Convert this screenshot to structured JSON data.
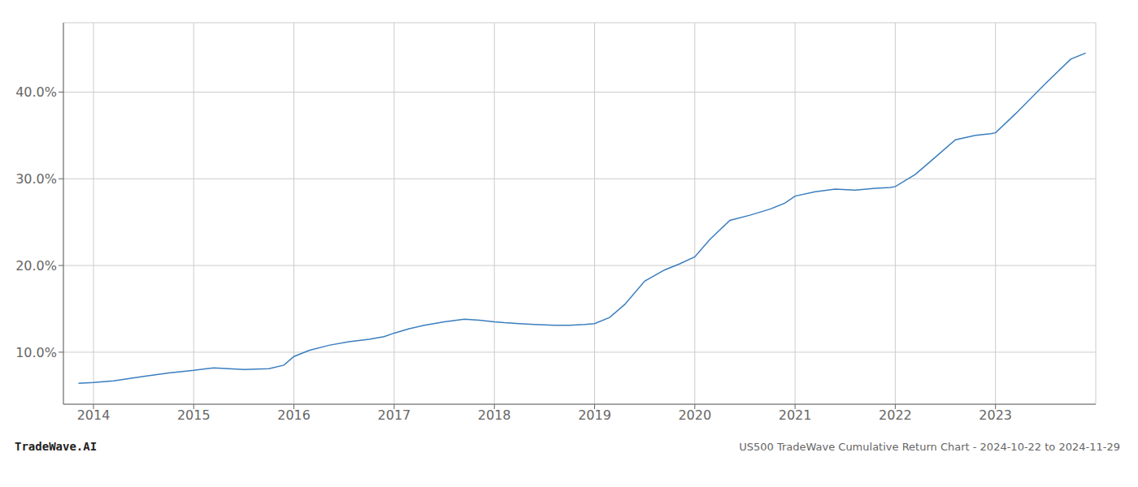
{
  "chart_data": {
    "type": "line",
    "title": "US500 TradeWave Cumulative Return Chart - 2024-10-22 to 2024-11-29",
    "annotations": [
      "TradeWave.AI"
    ],
    "x": [
      2013.85,
      2014.0,
      2014.2,
      2014.5,
      2014.75,
      2015.0,
      2015.2,
      2015.5,
      2015.75,
      2015.9,
      2016.0,
      2016.15,
      2016.35,
      2016.55,
      2016.75,
      2016.9,
      2017.0,
      2017.15,
      2017.3,
      2017.5,
      2017.7,
      2017.85,
      2018.0,
      2018.1,
      2018.25,
      2018.4,
      2018.6,
      2018.75,
      2018.9,
      2019.0,
      2019.15,
      2019.3,
      2019.5,
      2019.7,
      2019.85,
      2020.0,
      2020.15,
      2020.35,
      2020.55,
      2020.75,
      2020.9,
      2021.0,
      2021.2,
      2021.4,
      2021.6,
      2021.8,
      2021.95,
      2022.0,
      2022.2,
      2022.4,
      2022.6,
      2022.8,
      2022.95,
      2023.0,
      2023.2,
      2023.5,
      2023.75,
      2023.9
    ],
    "values": [
      6.4,
      6.5,
      6.7,
      7.2,
      7.6,
      7.9,
      8.2,
      8.0,
      8.1,
      8.5,
      9.5,
      10.2,
      10.8,
      11.2,
      11.5,
      11.8,
      12.2,
      12.7,
      13.1,
      13.5,
      13.8,
      13.7,
      13.5,
      13.4,
      13.3,
      13.2,
      13.1,
      13.1,
      13.2,
      13.3,
      14.0,
      15.5,
      18.2,
      19.5,
      20.2,
      21.0,
      23.0,
      25.2,
      25.8,
      26.5,
      27.2,
      28.0,
      28.5,
      28.8,
      28.7,
      28.9,
      29.0,
      29.1,
      30.5,
      32.5,
      34.5,
      35.0,
      35.2,
      35.3,
      37.5,
      41.0,
      43.8,
      44.5
    ],
    "color": "#3a7ebf",
    "xlim": [
      2013.7,
      2024.0
    ],
    "ylim": [
      4.0,
      48.0
    ],
    "xticks": [
      2014,
      2015,
      2016,
      2017,
      2018,
      2019,
      2020,
      2021,
      2022,
      2023
    ],
    "yticks": [
      {
        "value": 10.0,
        "label": "10.0%"
      },
      {
        "value": 20.0,
        "label": "20.0%"
      },
      {
        "value": 30.0,
        "label": "30.0%"
      },
      {
        "value": 40.0,
        "label": "40.0%"
      }
    ],
    "grid": true
  }
}
